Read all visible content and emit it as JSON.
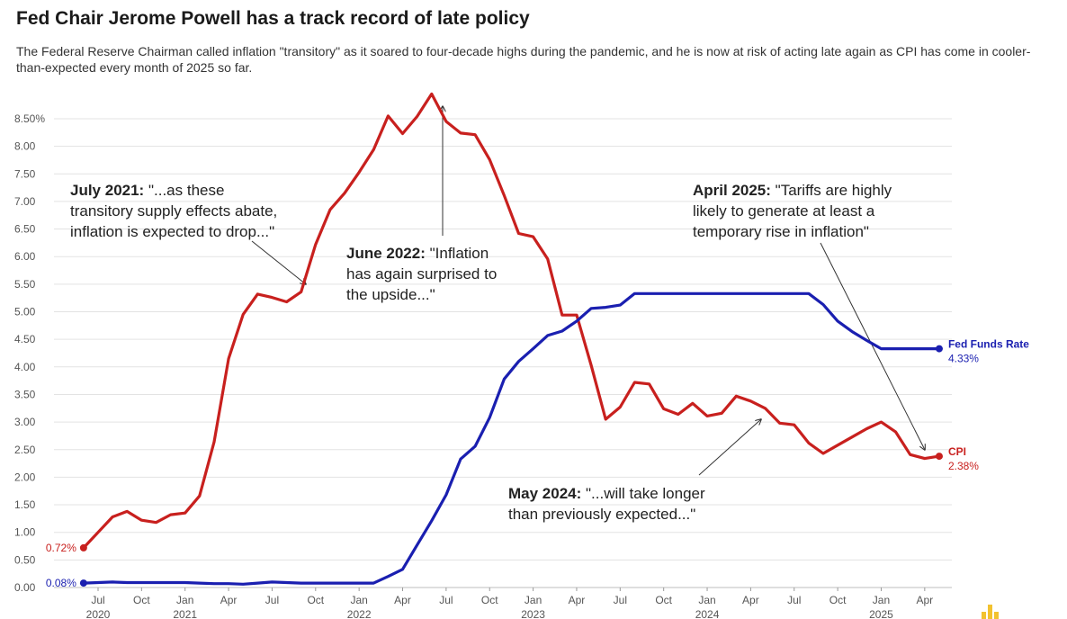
{
  "title": "Fed Chair Jerome Powell has a track record of late policy",
  "subtitle": "The Federal Reserve Chairman called inflation \"transitory\" as it soared to four-decade highs during the pandemic, and he is now at risk of acting late again as CPI has come in cooler-than-expected every month of 2025 so far.",
  "colors": {
    "cpi": "#c8201e",
    "fed": "#1a1fb0",
    "grid": "#e3e3e3",
    "logo": "#f2c230"
  },
  "annotations": [
    {
      "bold": "July 2021:",
      "lines": [
        " \"...as these",
        "transitory supply effects abate,",
        "inflation is expected to drop...\""
      ]
    },
    {
      "bold": "June 2022:",
      "lines": [
        " \"Inflation",
        "has again surprised to",
        "the upside...\""
      ]
    },
    {
      "bold": "April 2025:",
      "lines": [
        " \"Tariffs are highly",
        "likely to generate at least a",
        "temporary rise in inflation\""
      ]
    },
    {
      "bold": "May 2024:",
      "lines": [
        " \"...will take longer",
        "than previously expected...\""
      ]
    }
  ],
  "chart_data": {
    "type": "line",
    "title": "Fed Chair Jerome Powell has a track record of late policy",
    "xlabel": "",
    "ylabel": "",
    "ylim": [
      0,
      8.5
    ],
    "y_ticks": [
      "0.00",
      "0.50",
      "1.00",
      "1.50",
      "2.00",
      "2.50",
      "3.00",
      "3.50",
      "4.00",
      "4.50",
      "5.00",
      "5.50",
      "6.00",
      "6.50",
      "7.00",
      "7.50",
      "8.00",
      "8.50%"
    ],
    "x_ticks": [
      {
        "date": "2020-07",
        "label": "Jul",
        "year": "2020"
      },
      {
        "date": "2020-10",
        "label": "Oct",
        "year": ""
      },
      {
        "date": "2021-01",
        "label": "Jan",
        "year": "2021"
      },
      {
        "date": "2021-04",
        "label": "Apr",
        "year": ""
      },
      {
        "date": "2021-07",
        "label": "Jul",
        "year": ""
      },
      {
        "date": "2021-10",
        "label": "Oct",
        "year": ""
      },
      {
        "date": "2022-01",
        "label": "Jan",
        "year": "2022"
      },
      {
        "date": "2022-04",
        "label": "Apr",
        "year": ""
      },
      {
        "date": "2022-07",
        "label": "Jul",
        "year": ""
      },
      {
        "date": "2022-10",
        "label": "Oct",
        "year": ""
      },
      {
        "date": "2023-01",
        "label": "Jan",
        "year": "2023"
      },
      {
        "date": "2023-04",
        "label": "Apr",
        "year": ""
      },
      {
        "date": "2023-07",
        "label": "Jul",
        "year": ""
      },
      {
        "date": "2023-10",
        "label": "Oct",
        "year": ""
      },
      {
        "date": "2024-01",
        "label": "Jan",
        "year": "2024"
      },
      {
        "date": "2024-04",
        "label": "Apr",
        "year": ""
      },
      {
        "date": "2024-07",
        "label": "Jul",
        "year": ""
      },
      {
        "date": "2024-10",
        "label": "Oct",
        "year": ""
      },
      {
        "date": "2025-01",
        "label": "Jan",
        "year": "2025"
      },
      {
        "date": "2025-04",
        "label": "Apr",
        "year": ""
      }
    ],
    "grid": true,
    "series": [
      {
        "name": "CPI",
        "start_label": "0.72%",
        "end_label": "2.38%",
        "x": [
          "2020-06",
          "2020-07",
          "2020-08",
          "2020-09",
          "2020-10",
          "2020-11",
          "2020-12",
          "2021-01",
          "2021-02",
          "2021-03",
          "2021-04",
          "2021-05",
          "2021-06",
          "2021-07",
          "2021-08",
          "2021-09",
          "2021-10",
          "2021-11",
          "2021-12",
          "2022-01",
          "2022-02",
          "2022-03",
          "2022-04",
          "2022-05",
          "2022-06",
          "2022-07",
          "2022-08",
          "2022-09",
          "2022-10",
          "2022-11",
          "2022-12",
          "2023-01",
          "2023-02",
          "2023-03",
          "2023-04",
          "2023-05",
          "2023-06",
          "2023-07",
          "2023-08",
          "2023-09",
          "2023-10",
          "2023-11",
          "2023-12",
          "2024-01",
          "2024-02",
          "2024-03",
          "2024-04",
          "2024-05",
          "2024-06",
          "2024-07",
          "2024-08",
          "2024-09",
          "2024-10",
          "2024-11",
          "2024-12",
          "2025-01",
          "2025-02",
          "2025-03",
          "2025-04",
          "2025-05"
        ],
        "values": [
          0.72,
          1.0,
          1.28,
          1.38,
          1.22,
          1.18,
          1.32,
          1.35,
          1.66,
          2.64,
          4.15,
          4.95,
          5.32,
          5.26,
          5.18,
          5.36,
          6.22,
          6.85,
          7.15,
          7.53,
          7.94,
          8.55,
          8.23,
          8.54,
          8.95,
          8.45,
          8.24,
          8.21,
          7.76,
          7.11,
          6.42,
          6.36,
          5.96,
          4.94,
          4.94,
          4.03,
          3.05,
          3.27,
          3.72,
          3.69,
          3.24,
          3.14,
          3.34,
          3.11,
          3.16,
          3.47,
          3.38,
          3.25,
          2.98,
          2.95,
          2.62,
          2.43,
          2.58,
          2.73,
          2.88,
          3.0,
          2.82,
          2.41,
          2.34,
          2.38
        ]
      },
      {
        "name": "Fed Funds Rate",
        "start_label": "0.08%",
        "end_label": "4.33%",
        "x": [
          "2020-06",
          "2020-07",
          "2020-08",
          "2020-09",
          "2020-10",
          "2020-11",
          "2020-12",
          "2021-01",
          "2021-02",
          "2021-03",
          "2021-04",
          "2021-05",
          "2021-06",
          "2021-07",
          "2021-08",
          "2021-09",
          "2021-10",
          "2021-11",
          "2021-12",
          "2022-01",
          "2022-02",
          "2022-03",
          "2022-04",
          "2022-05",
          "2022-06",
          "2022-07",
          "2022-08",
          "2022-09",
          "2022-10",
          "2022-11",
          "2022-12",
          "2023-01",
          "2023-02",
          "2023-03",
          "2023-04",
          "2023-05",
          "2023-06",
          "2023-07",
          "2023-08",
          "2023-09",
          "2023-10",
          "2023-11",
          "2023-12",
          "2024-01",
          "2024-02",
          "2024-03",
          "2024-04",
          "2024-05",
          "2024-06",
          "2024-07",
          "2024-08",
          "2024-09",
          "2024-10",
          "2024-11",
          "2024-12",
          "2025-01",
          "2025-02",
          "2025-03",
          "2025-04",
          "2025-05"
        ],
        "values": [
          0.08,
          0.09,
          0.1,
          0.09,
          0.09,
          0.09,
          0.09,
          0.09,
          0.08,
          0.07,
          0.07,
          0.06,
          0.08,
          0.1,
          0.09,
          0.08,
          0.08,
          0.08,
          0.08,
          0.08,
          0.08,
          0.2,
          0.33,
          0.77,
          1.21,
          1.68,
          2.33,
          2.56,
          3.08,
          3.78,
          4.1,
          4.33,
          4.57,
          4.65,
          4.83,
          5.06,
          5.08,
          5.12,
          5.33,
          5.33,
          5.33,
          5.33,
          5.33,
          5.33,
          5.33,
          5.33,
          5.33,
          5.33,
          5.33,
          5.33,
          5.33,
          5.13,
          4.83,
          4.64,
          4.48,
          4.33,
          4.33,
          4.33,
          4.33,
          4.33
        ]
      }
    ]
  }
}
